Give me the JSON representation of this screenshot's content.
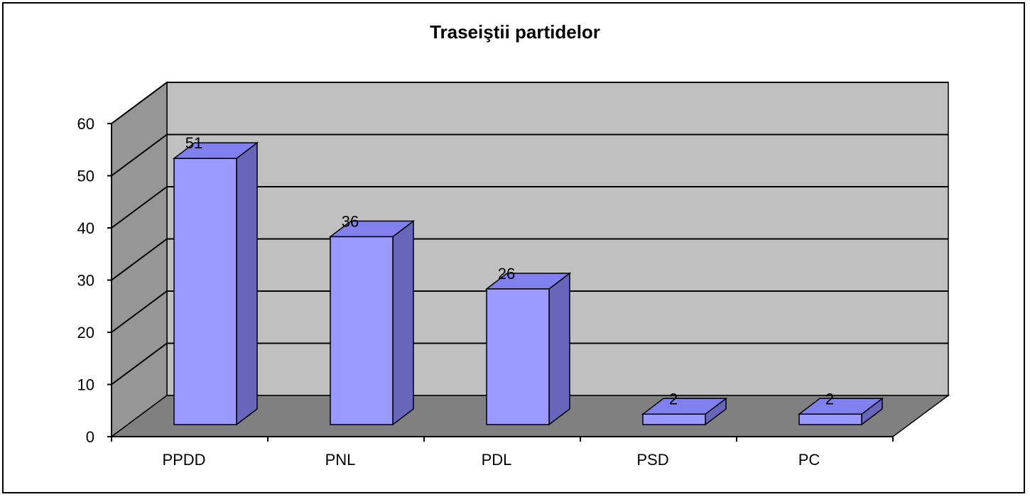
{
  "chart_data": {
    "type": "bar",
    "title": "Traseiştii partidelor",
    "categories": [
      "PPDD",
      "PNL",
      "PDL",
      "PSD",
      "PC"
    ],
    "values": [
      51,
      36,
      26,
      2,
      2
    ],
    "data_labels": [
      "51",
      "36",
      "26",
      "2",
      "2"
    ],
    "xlabel": "",
    "ylabel": "",
    "ylim": [
      0,
      60
    ],
    "yticks": [
      "0",
      "10",
      "20",
      "30",
      "40",
      "50",
      "60"
    ],
    "grid": true,
    "style": "3d",
    "colors": {
      "bar_front": "#9999ff",
      "bar_top": "#8080ee",
      "bar_side": "#6666bb",
      "wall": "#c0c0c0",
      "floor": "#808080",
      "side_wall": "#969696"
    }
  }
}
